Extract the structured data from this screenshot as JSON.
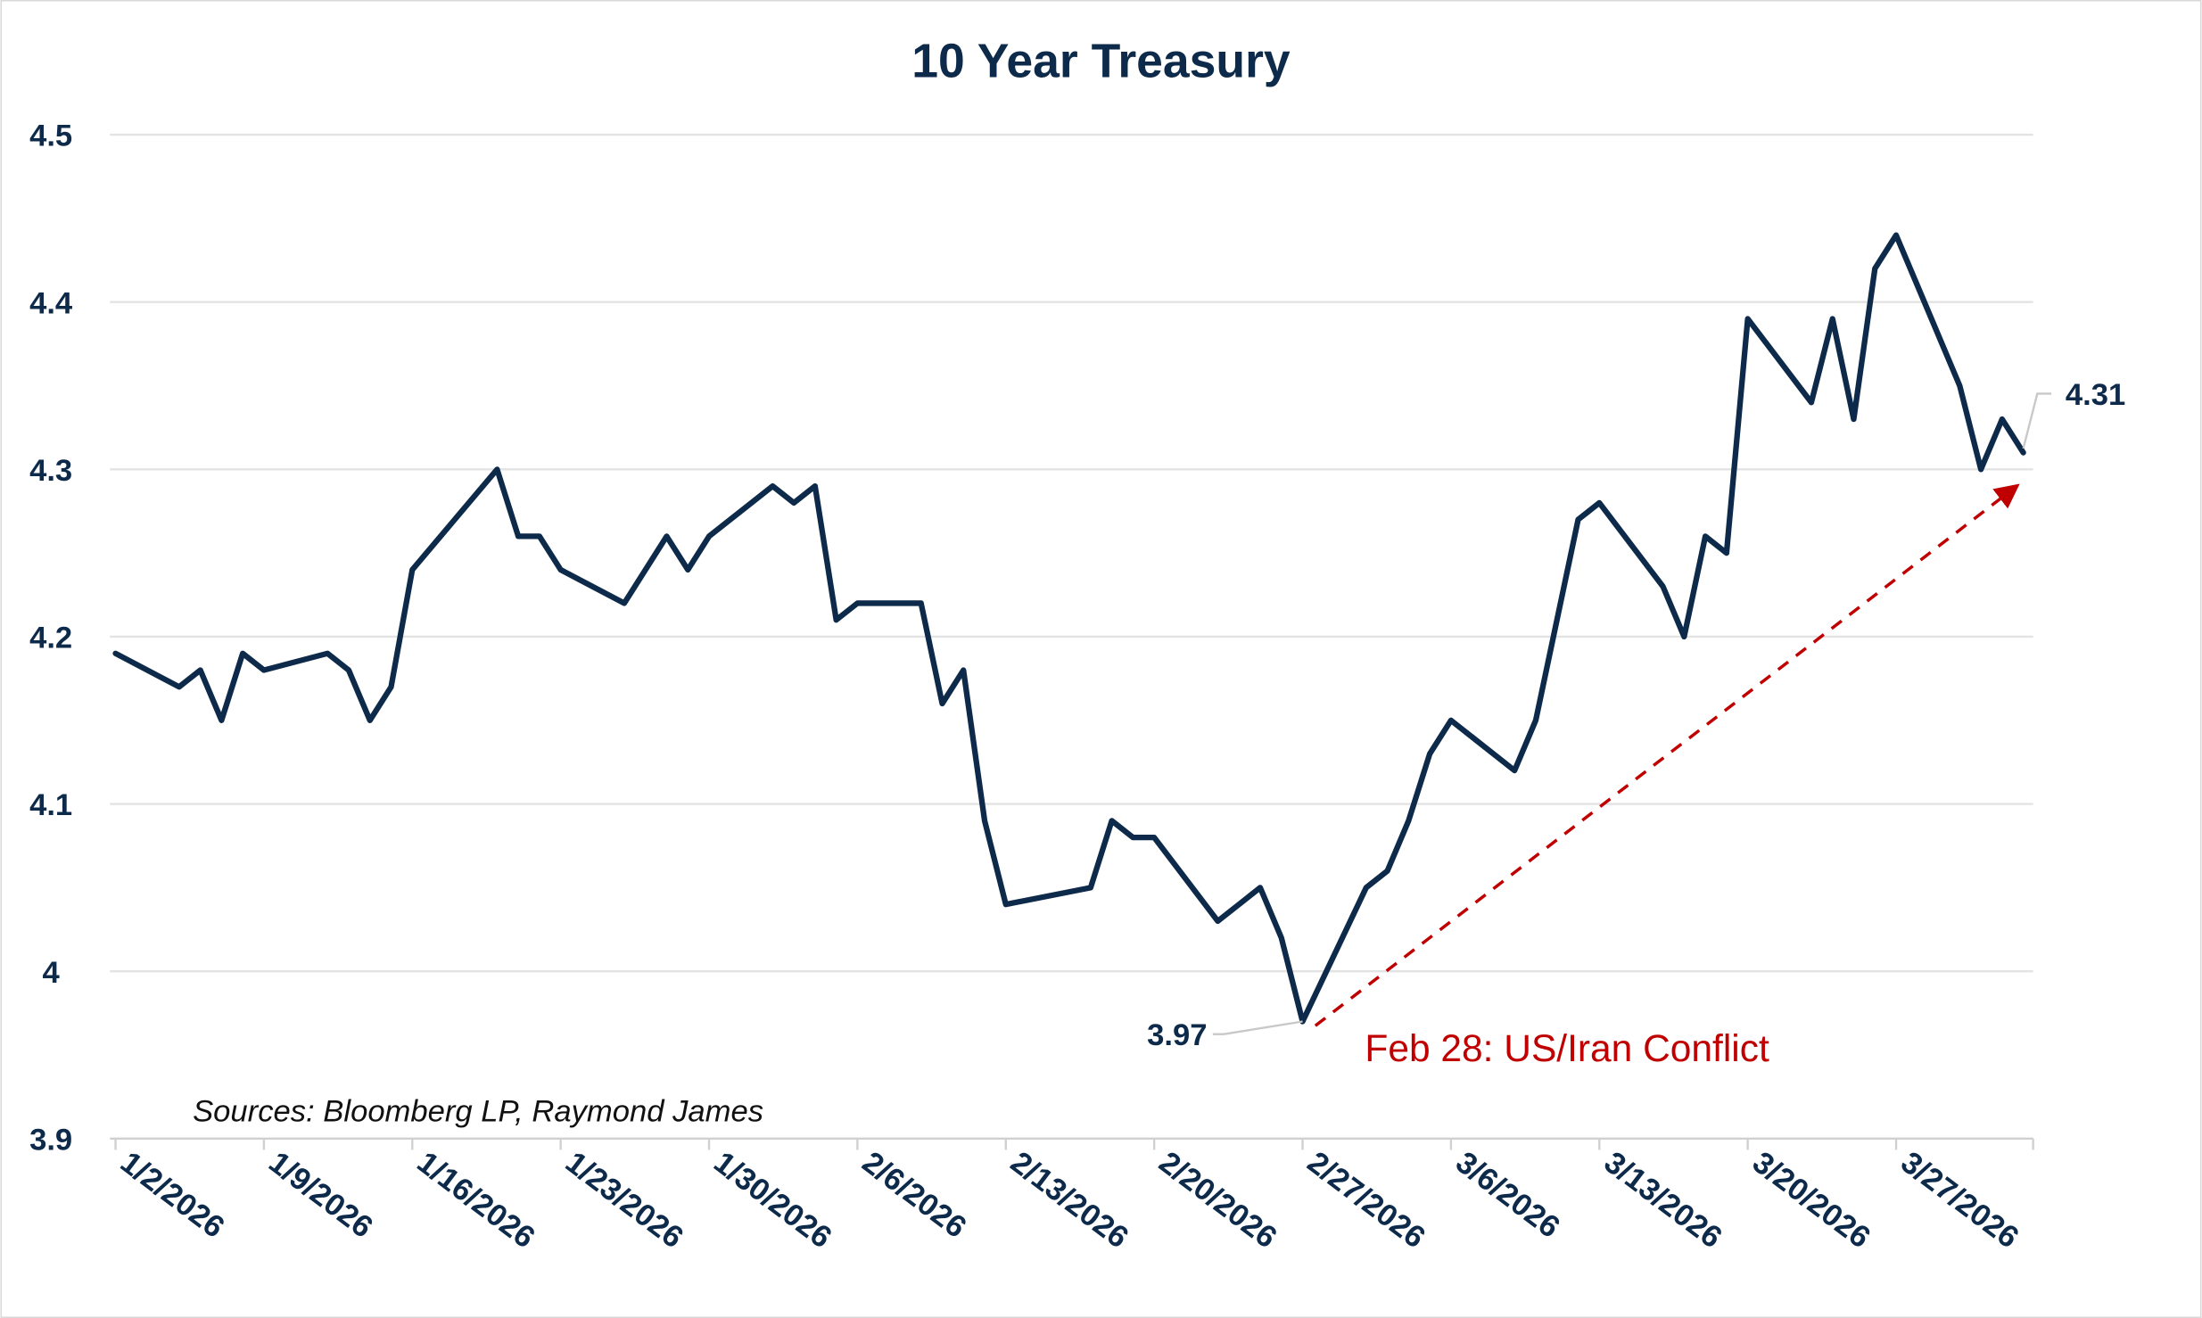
{
  "chart_data": {
    "type": "line",
    "title": "10 Year Treasury",
    "xlabel": "",
    "ylabel": "",
    "ylim": [
      3.9,
      4.5
    ],
    "yticks": [
      "4.5",
      "4.4",
      "4.3",
      "4.2",
      "4.1",
      "4",
      "3.9"
    ],
    "ytick_values": [
      4.5,
      4.4,
      4.3,
      4.2,
      4.1,
      4.0,
      3.9
    ],
    "grid": true,
    "xticks": [
      "1/2/2026",
      "1/9/2026",
      "1/16/2026",
      "1/23/2026",
      "1/30/2026",
      "2/6/2026",
      "2/13/2026",
      "2/20/2026",
      "2/27/2026",
      "3/6/2026",
      "3/13/2026",
      "3/20/2026",
      "3/27/2026"
    ],
    "line_color": "#0d2a4a",
    "series": [
      {
        "x": [
          "2026-01-02",
          "2026-01-05",
          "2026-01-06",
          "2026-01-07",
          "2026-01-08",
          "2026-01-09",
          "2026-01-12",
          "2026-01-13",
          "2026-01-14",
          "2026-01-15",
          "2026-01-16",
          "2026-01-20",
          "2026-01-21",
          "2026-01-22",
          "2026-01-23",
          "2026-01-26",
          "2026-01-27",
          "2026-01-28",
          "2026-01-29",
          "2026-01-30",
          "2026-02-02",
          "2026-02-03",
          "2026-02-04",
          "2026-02-05",
          "2026-02-06",
          "2026-02-09",
          "2026-02-10",
          "2026-02-11",
          "2026-02-12",
          "2026-02-13",
          "2026-02-17",
          "2026-02-18",
          "2026-02-19",
          "2026-02-20",
          "2026-02-23",
          "2026-02-24",
          "2026-02-25",
          "2026-02-26",
          "2026-02-27",
          "2026-03-02",
          "2026-03-03",
          "2026-03-04",
          "2026-03-05",
          "2026-03-06",
          "2026-03-09",
          "2026-03-10",
          "2026-03-11",
          "2026-03-12",
          "2026-03-13",
          "2026-03-16",
          "2026-03-17",
          "2026-03-18",
          "2026-03-19",
          "2026-03-20",
          "2026-03-23",
          "2026-03-24",
          "2026-03-25",
          "2026-03-26",
          "2026-03-27",
          "2026-03-30",
          "2026-03-31",
          "2026-04-01",
          "2026-04-02"
        ],
        "values": [
          4.19,
          4.17,
          4.18,
          4.15,
          4.19,
          4.18,
          4.19,
          4.18,
          4.15,
          4.17,
          4.24,
          4.3,
          4.26,
          4.26,
          4.24,
          4.22,
          4.24,
          4.26,
          4.24,
          4.26,
          4.29,
          4.28,
          4.29,
          4.21,
          4.22,
          4.22,
          4.16,
          4.18,
          4.09,
          4.04,
          4.05,
          4.09,
          4.08,
          4.08,
          4.03,
          4.04,
          4.05,
          4.02,
          3.97,
          4.05,
          4.06,
          4.09,
          4.13,
          4.15,
          4.12,
          4.15,
          4.21,
          4.27,
          4.28,
          4.23,
          4.2,
          4.26,
          4.25,
          4.39,
          4.34,
          4.39,
          4.33,
          4.42,
          4.44,
          4.35,
          4.3,
          4.33,
          4.31
        ]
      }
    ],
    "data_labels": [
      {
        "text": "3.97",
        "date": "2026-02-27",
        "value": 3.97
      },
      {
        "text": "4.31",
        "date": "2026-04-02",
        "value": 4.31
      }
    ],
    "annotations": [
      {
        "text": "Feb 28: US/Iran Conflict",
        "color": "#c00000",
        "arrow": {
          "from": [
            "2026-02-28",
            3.97
          ],
          "to": [
            "2026-04-02",
            4.29
          ],
          "style": "dashed"
        }
      }
    ],
    "source": "Sources: Bloomberg LP, Raymond James"
  }
}
